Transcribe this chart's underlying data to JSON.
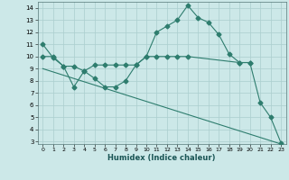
{
  "line1_x": [
    0,
    1,
    2,
    3,
    4,
    5,
    6,
    7,
    8,
    9,
    10,
    11,
    12,
    13,
    14,
    15,
    16,
    17,
    18,
    19,
    20,
    21,
    22,
    23
  ],
  "line1_y": [
    11.0,
    9.9,
    9.2,
    7.5,
    8.8,
    8.2,
    7.5,
    7.5,
    8.0,
    9.3,
    10.0,
    12.0,
    12.5,
    13.0,
    14.2,
    13.2,
    12.8,
    11.8,
    10.2,
    9.5,
    9.5,
    6.2,
    5.0,
    2.9
  ],
  "line2_x": [
    0,
    1,
    2,
    3,
    4,
    5,
    6,
    7,
    8,
    9,
    10,
    11,
    12,
    13,
    14,
    19,
    20
  ],
  "line2_y": [
    10.0,
    10.0,
    9.2,
    9.2,
    8.8,
    9.3,
    9.3,
    9.3,
    9.3,
    9.3,
    10.0,
    10.0,
    10.0,
    10.0,
    10.0,
    9.5,
    9.5
  ],
  "line3_x": [
    0,
    23
  ],
  "line3_y": [
    9.0,
    2.8
  ],
  "color": "#2e7d6e",
  "bg_color": "#cce8e8",
  "grid_color": "#aacece",
  "xlabel": "Humidex (Indice chaleur)",
  "xlim": [
    -0.5,
    23.5
  ],
  "ylim": [
    2.8,
    14.5
  ],
  "yticks": [
    3,
    4,
    5,
    6,
    7,
    8,
    9,
    10,
    11,
    12,
    13,
    14
  ],
  "xticks": [
    0,
    1,
    2,
    3,
    4,
    5,
    6,
    7,
    8,
    9,
    10,
    11,
    12,
    13,
    14,
    15,
    16,
    17,
    18,
    19,
    20,
    21,
    22,
    23
  ],
  "marker": "D",
  "markersize": 2.5,
  "linewidth": 0.8
}
